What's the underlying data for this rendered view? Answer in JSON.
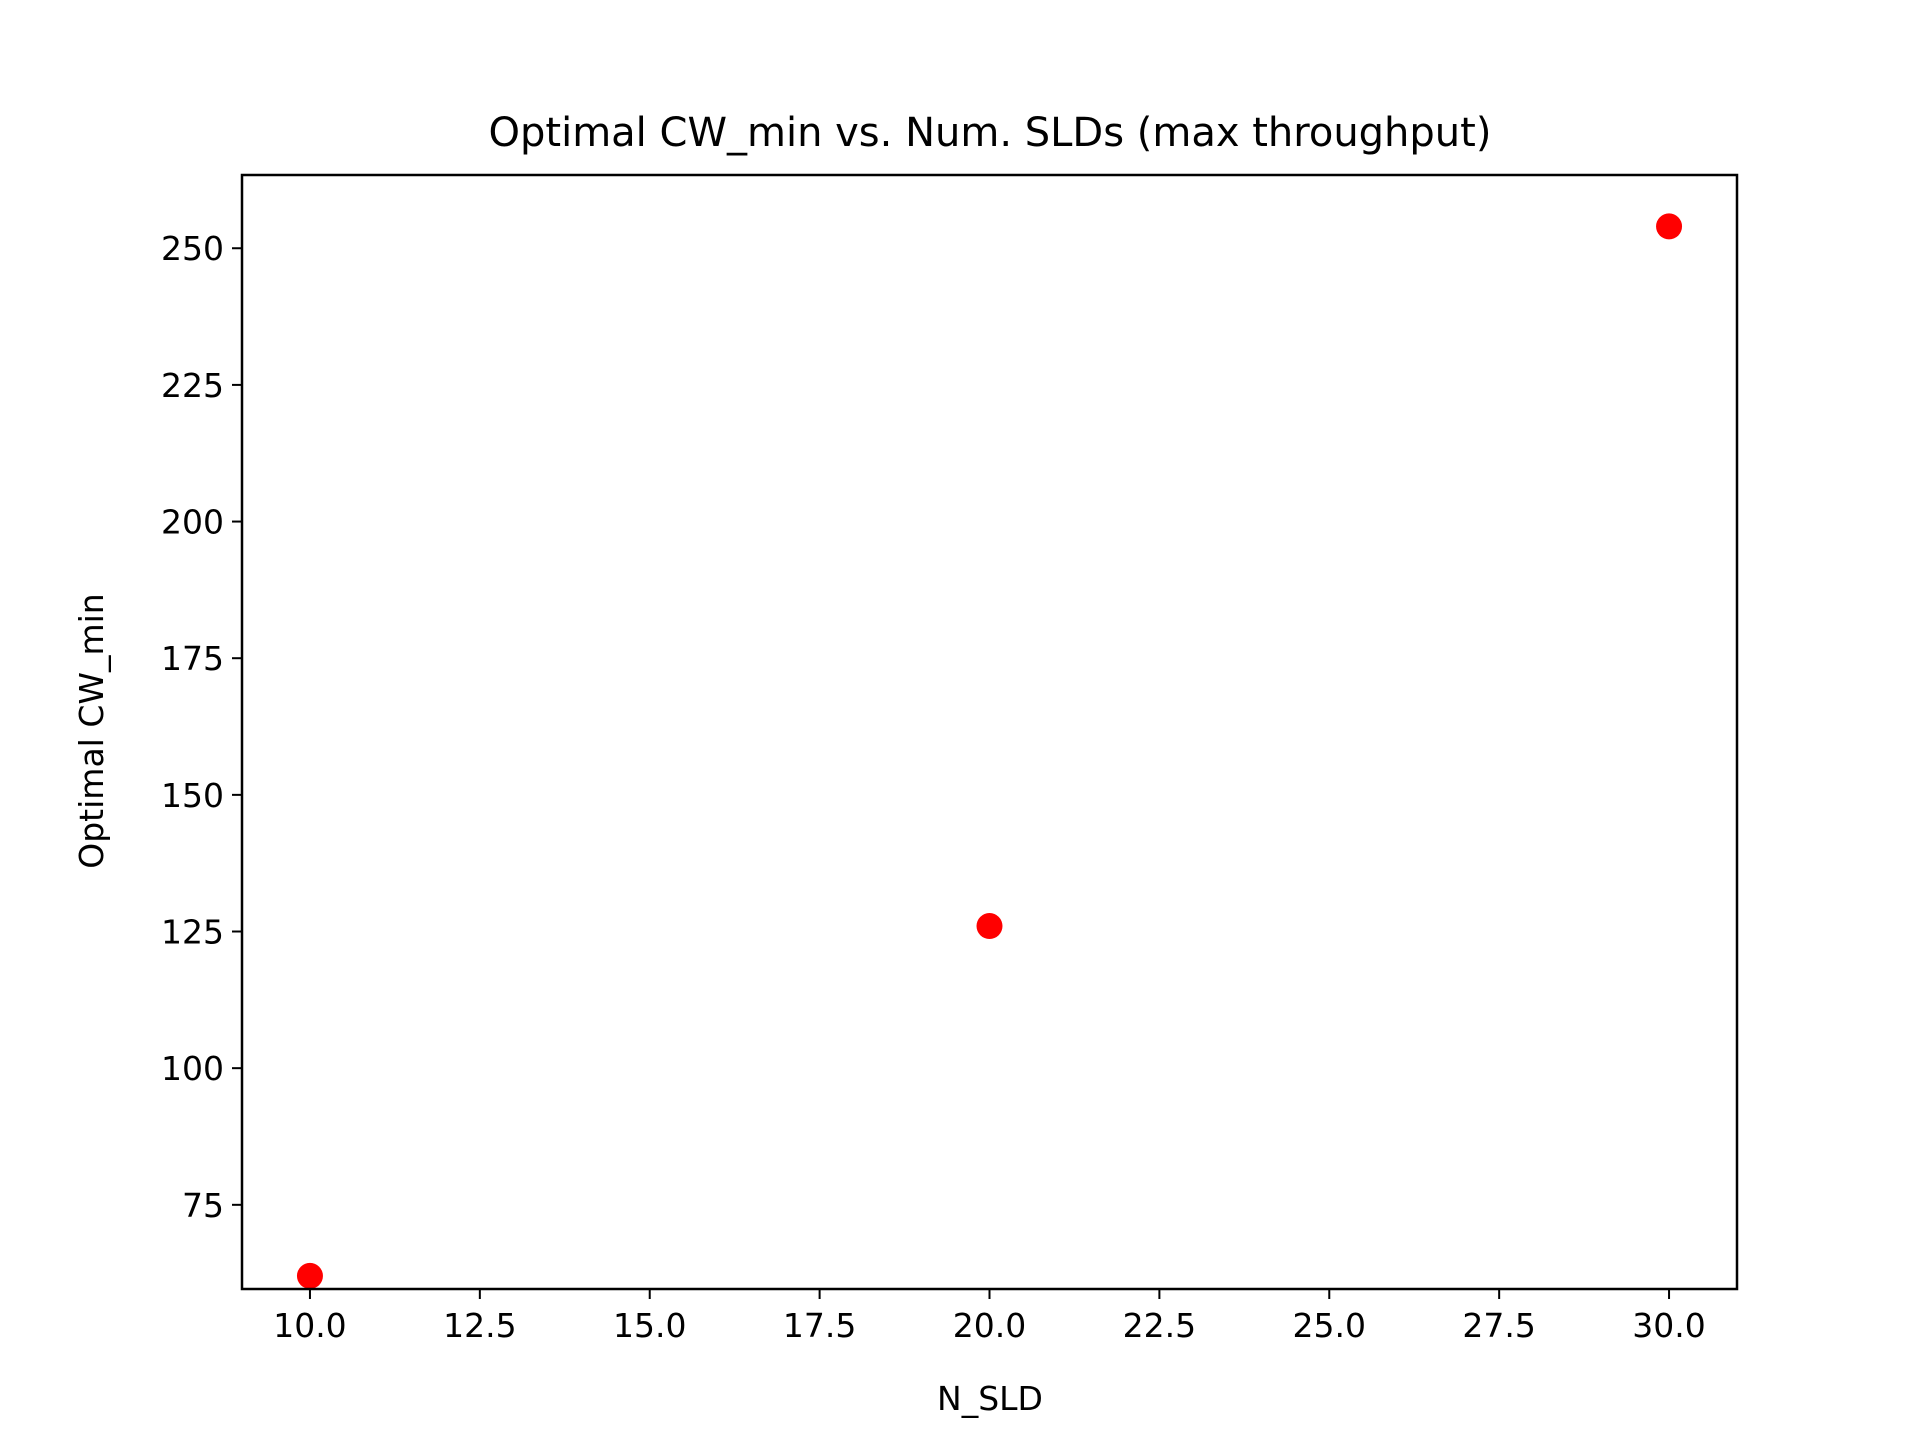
{
  "chart_data": {
    "type": "scatter",
    "title": "Optimal CW_min vs. Num. SLDs (max throughput)",
    "xlabel": "N_SLD",
    "ylabel": "Optimal CW_min",
    "xlim": [
      9.0,
      31.0
    ],
    "ylim": [
      59.6,
      263.4
    ],
    "x_ticks": [
      10.0,
      12.5,
      15.0,
      17.5,
      20.0,
      22.5,
      25.0,
      27.5,
      30.0
    ],
    "x_tick_labels": [
      "10.0",
      "12.5",
      "15.0",
      "17.5",
      "20.0",
      "22.5",
      "25.0",
      "27.5",
      "30.0"
    ],
    "y_ticks": [
      75,
      100,
      125,
      150,
      175,
      200,
      225,
      250
    ],
    "y_tick_labels": [
      "75",
      "100",
      "125",
      "150",
      "175",
      "200",
      "225",
      "250"
    ],
    "series": [
      {
        "x": [
          10,
          20,
          30
        ],
        "y": [
          62,
          126,
          254
        ],
        "color": "#ff0000",
        "marker": "circle"
      }
    ],
    "grid": false,
    "legend": "none"
  }
}
